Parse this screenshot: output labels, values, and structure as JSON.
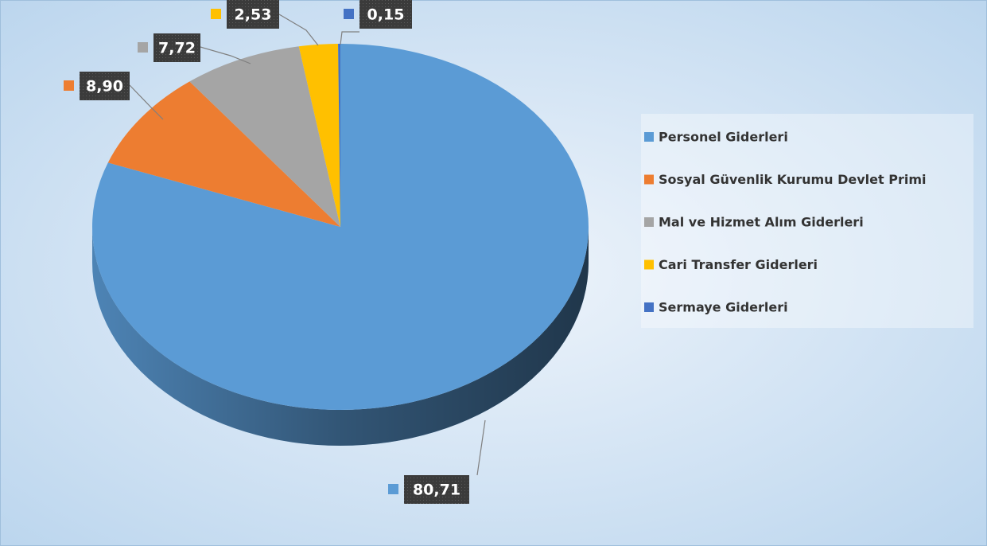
{
  "chart_data": {
    "type": "pie",
    "categories": [
      "Personel Giderleri",
      "Sosyal Güvenlik Kurumu Devlet Primi",
      "Mal ve Hizmet Alım Giderleri",
      "Cari Transfer Giderleri",
      "Sermaye Giderleri"
    ],
    "values": [
      80.71,
      8.9,
      7.72,
      2.53,
      0.15
    ],
    "value_labels": [
      "80,71",
      "8,90",
      "7,72",
      "2,53",
      "0,15"
    ],
    "colors": [
      "#5b9bd5",
      "#ed7d31",
      "#a5a5a5",
      "#ffc000",
      "#4472c4"
    ],
    "legend": "right"
  }
}
